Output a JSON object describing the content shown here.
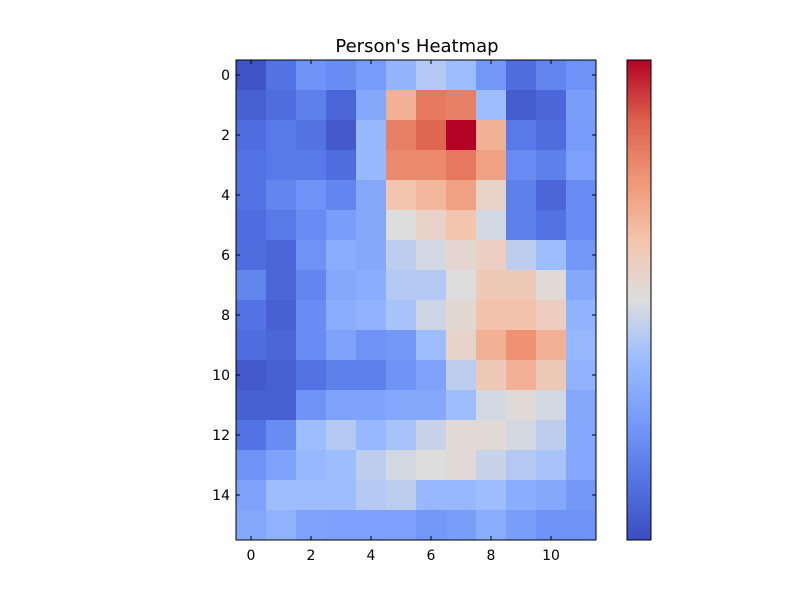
{
  "chart_data": {
    "type": "heatmap",
    "title": "Person's Heatmap",
    "colormap": "coolwarm",
    "x_ticks": [
      "0",
      "2",
      "4",
      "6",
      "8",
      "10"
    ],
    "y_ticks": [
      "0",
      "2",
      "4",
      "6",
      "8",
      "10",
      "12",
      "14"
    ],
    "vmin": 0,
    "vmax": 1,
    "values": [
      [
        0.02,
        0.12,
        0.22,
        0.2,
        0.25,
        0.35,
        0.42,
        0.38,
        0.24,
        0.1,
        0.18,
        0.22
      ],
      [
        0.06,
        0.1,
        0.16,
        0.08,
        0.3,
        0.68,
        0.82,
        0.8,
        0.38,
        0.05,
        0.08,
        0.26
      ],
      [
        0.1,
        0.14,
        0.12,
        0.04,
        0.36,
        0.8,
        0.86,
        1.0,
        0.68,
        0.14,
        0.1,
        0.25
      ],
      [
        0.12,
        0.14,
        0.14,
        0.1,
        0.36,
        0.78,
        0.78,
        0.82,
        0.72,
        0.2,
        0.16,
        0.27
      ],
      [
        0.12,
        0.18,
        0.22,
        0.18,
        0.3,
        0.62,
        0.66,
        0.72,
        0.56,
        0.16,
        0.08,
        0.2
      ],
      [
        0.1,
        0.14,
        0.2,
        0.26,
        0.3,
        0.5,
        0.56,
        0.62,
        0.48,
        0.16,
        0.12,
        0.2
      ],
      [
        0.1,
        0.08,
        0.22,
        0.32,
        0.3,
        0.44,
        0.48,
        0.54,
        0.57,
        0.44,
        0.38,
        0.24
      ],
      [
        0.18,
        0.08,
        0.18,
        0.3,
        0.32,
        0.42,
        0.42,
        0.5,
        0.6,
        0.6,
        0.52,
        0.3
      ],
      [
        0.12,
        0.06,
        0.2,
        0.32,
        0.34,
        0.4,
        0.47,
        0.53,
        0.63,
        0.63,
        0.58,
        0.34
      ],
      [
        0.1,
        0.08,
        0.2,
        0.28,
        0.22,
        0.24,
        0.38,
        0.55,
        0.68,
        0.76,
        0.68,
        0.36
      ],
      [
        0.04,
        0.06,
        0.12,
        0.16,
        0.16,
        0.22,
        0.28,
        0.44,
        0.6,
        0.68,
        0.6,
        0.34
      ],
      [
        0.06,
        0.06,
        0.22,
        0.28,
        0.28,
        0.3,
        0.3,
        0.38,
        0.48,
        0.52,
        0.48,
        0.3
      ],
      [
        0.12,
        0.2,
        0.38,
        0.42,
        0.36,
        0.4,
        0.46,
        0.52,
        0.52,
        0.48,
        0.44,
        0.3
      ],
      [
        0.22,
        0.28,
        0.36,
        0.38,
        0.44,
        0.48,
        0.5,
        0.52,
        0.46,
        0.42,
        0.4,
        0.3
      ],
      [
        0.28,
        0.38,
        0.38,
        0.38,
        0.42,
        0.44,
        0.36,
        0.36,
        0.38,
        0.32,
        0.3,
        0.24
      ],
      [
        0.3,
        0.34,
        0.28,
        0.27,
        0.27,
        0.27,
        0.24,
        0.26,
        0.32,
        0.26,
        0.22,
        0.22
      ]
    ],
    "grid": false,
    "colorbar": "right"
  }
}
